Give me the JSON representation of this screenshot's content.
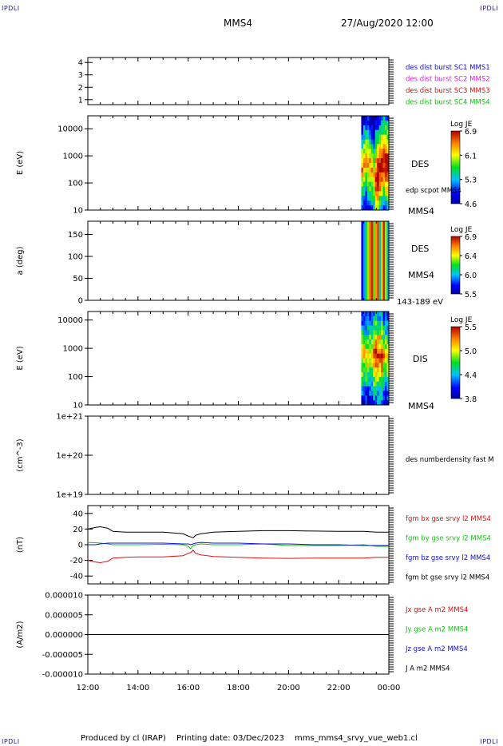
{
  "corners": {
    "tl": "IPDLI",
    "tr": "IPDLI",
    "bl": "IPDLI",
    "br": "IPDLI"
  },
  "header": {
    "spacecraft": "MMS4",
    "datetime": "27/Aug/2020 12:00"
  },
  "footer": {
    "produced_by": "Produced by cl (IRAP)",
    "printing_date": "Printing date: 03/Dec/2023",
    "filename": "mms_mms4_srvy_vue_web1.cl"
  },
  "colors": {
    "blue": "#1010dd",
    "magenta": "#e020e0",
    "red": "#dd1010",
    "green": "#10c010",
    "black": "#000000"
  },
  "chart_data": [
    {
      "type": "line",
      "id": "burst",
      "ylim": [
        0.6,
        4.4
      ],
      "yticks": [
        "1",
        "2",
        "3",
        "4"
      ],
      "labels": [
        {
          "text": "des dist burst SC1 MMS1",
          "color": "blue"
        },
        {
          "text": "des dist burst SC2 MMS2",
          "color": "magenta"
        },
        {
          "text": "des dist burst SC3 MMS3",
          "color": "red"
        },
        {
          "text": "des dist burst SC4 MMS4",
          "color": "green"
        }
      ]
    },
    {
      "type": "heatmap",
      "id": "des_energy",
      "ylabel": "E (eV)",
      "yscale": "log",
      "ylim": [
        10,
        30000
      ],
      "yticks": [
        "10",
        "100",
        "1000",
        "10000"
      ],
      "data_start_hour": 22.9,
      "side_labels": [
        "DES",
        "edp scpot MMS4",
        "MMS4"
      ],
      "colorbar": {
        "title": "Log JE",
        "ticks": [
          "6.9",
          "6.1",
          "5.3",
          "4.6"
        ]
      }
    },
    {
      "type": "heatmap",
      "id": "des_pitch",
      "ylabel": "a (deg)",
      "ylim": [
        0,
        180
      ],
      "yticks": [
        "0",
        "50",
        "100",
        "150"
      ],
      "data_start_hour": 22.9,
      "side_labels": [
        "DES",
        "MMS4",
        "143-189 eV"
      ],
      "colorbar": {
        "title": "Log JE",
        "ticks": [
          "6.9",
          "6.4",
          "6.0",
          "5.5"
        ]
      }
    },
    {
      "type": "heatmap",
      "id": "dis_energy",
      "ylabel": "E (eV)",
      "yscale": "log",
      "ylim": [
        10,
        20000
      ],
      "yticks": [
        "10",
        "100",
        "1000",
        "10000"
      ],
      "data_start_hour": 22.9,
      "side_labels": [
        "DIS",
        "MMS4"
      ],
      "colorbar": {
        "title": "Log JE",
        "ticks": [
          "5.5",
          "5.0",
          "4.4",
          "3.8"
        ]
      }
    },
    {
      "type": "line",
      "id": "density",
      "ylabel": "(cm^-3)",
      "yscale": "log",
      "yticks": [
        "1e+19",
        "1e+20",
        "1e+21"
      ],
      "labels": [
        {
          "text": "des numberdensity fast M",
          "color": "black"
        }
      ],
      "series": []
    },
    {
      "type": "line",
      "id": "fgm",
      "ylabel": "(nT)",
      "ylim": [
        -50,
        50
      ],
      "yticks": [
        "-40",
        "-20",
        "0",
        "20",
        "40"
      ],
      "x": [
        12.0,
        12.3,
        12.5,
        12.8,
        13.0,
        13.5,
        14.0,
        15.0,
        15.8,
        16.0,
        16.1,
        16.2,
        16.3,
        16.5,
        17.0,
        18.0,
        19.0,
        20.0,
        21.0,
        22.0,
        23.0,
        23.5,
        24.0
      ],
      "series": [
        {
          "name": "fgm bx gse srvy l2 MMS4",
          "color": "red",
          "values": [
            -20,
            -22,
            -23,
            -21,
            -17,
            -16,
            -15.5,
            -15.5,
            -14,
            -11,
            -10,
            -7,
            -11,
            -13,
            -15,
            -16,
            -17,
            -17.5,
            -17,
            -17,
            -17,
            -16,
            -16
          ]
        },
        {
          "name": "fgm by gse srvy l2 MMS4",
          "color": "green",
          "values": [
            3,
            2.5,
            2,
            1,
            0,
            0,
            0,
            0.5,
            0,
            -2,
            -5,
            -1,
            0,
            1,
            0,
            0,
            1,
            -1,
            -1,
            -1,
            0,
            -2,
            -2
          ]
        },
        {
          "name": "fgm bz gse srvy l2 MMS4",
          "color": "blue",
          "values": [
            0,
            0,
            1,
            2,
            2,
            2,
            2,
            2,
            1,
            1,
            0,
            1,
            2,
            3,
            2,
            2,
            1,
            1,
            0,
            0,
            -1,
            -1,
            -1
          ]
        },
        {
          "name": "fgm bt gse srvy l2 MMS4",
          "color": "black",
          "values": [
            20,
            22,
            23,
            21,
            17,
            16,
            16,
            16,
            14,
            11,
            10,
            9,
            12,
            14,
            16,
            17,
            18,
            18,
            17.5,
            17,
            17,
            16,
            16
          ]
        }
      ]
    },
    {
      "type": "line",
      "id": "current",
      "ylabel": "(A/m2)",
      "ylim": [
        -1e-05,
        1e-05
      ],
      "yticks": [
        "0.000010",
        "0.000005",
        "0.000000",
        "-0.000005",
        "-0.000010"
      ],
      "labels": [
        {
          "text": "Jx gse A m2 MMS4",
          "color": "red"
        },
        {
          "text": "Jy gse A m2 MMS4",
          "color": "green"
        },
        {
          "text": "Jz gse A m2 MMS4",
          "color": "blue"
        },
        {
          "text": "J A m2 MMS4",
          "color": "black"
        }
      ],
      "x": [
        12,
        24
      ],
      "series": [
        {
          "name": "J A m2 MMS4",
          "color": "black",
          "values": [
            0,
            0
          ]
        }
      ]
    }
  ],
  "xaxis": {
    "ticks": [
      "12:00",
      "14:00",
      "16:00",
      "18:00",
      "20:00",
      "22:00",
      "00:00"
    ],
    "range_hours": [
      12,
      24
    ]
  }
}
